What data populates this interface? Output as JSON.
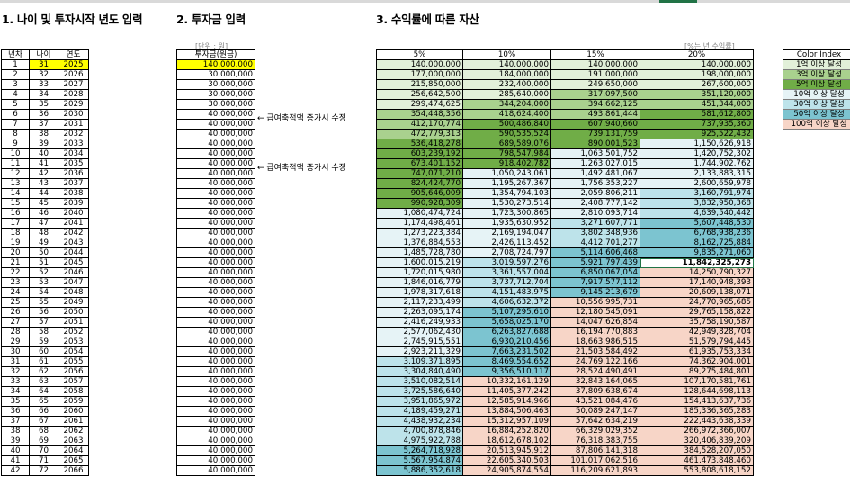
{
  "headings": {
    "h1": "1. 나이 및 투자시작 년도 입력",
    "h2": "2. 투자금 입력",
    "h3": "3. 수익률에 따른 자산"
  },
  "notes": {
    "unit": "[단위 : 원]",
    "rate": "[%는 년 수익률]"
  },
  "headers": {
    "year_no": "년차",
    "age": "나이",
    "year": "연도",
    "investment": "투자금(원금)",
    "rates": [
      "5%",
      "10%",
      "15%",
      "20%"
    ],
    "color_index": "Color Index"
  },
  "annotations": [
    "← 급여축적액 증가시 수정",
    "← 급여축적액 증가시 수정"
  ],
  "color_index": [
    {
      "label": "1억 이상 달성",
      "color": "#e2f0d9"
    },
    {
      "label": "3억 이상 달성",
      "color": "#a9d18e"
    },
    {
      "label": "5억 이상 달성",
      "color": "#70ad47"
    },
    {
      "label": "10억 이상 달성",
      "color": "#e6f3f6"
    },
    {
      "label": "30억 이상 달성",
      "color": "#bde3ea"
    },
    {
      "label": "50억 이상 달성",
      "color": "#7cc4d0"
    },
    {
      "label": "100억 이상 달성",
      "color": "#f7d5c7"
    }
  ],
  "rows": [
    [
      "1",
      "31",
      "2025",
      "140,000,000",
      "140,000,000",
      "140,000,000",
      "140,000,000",
      "140,000,000"
    ],
    [
      "2",
      "32",
      "2026",
      "30,000,000",
      "177,000,000",
      "184,000,000",
      "191,000,000",
      "198,000,000"
    ],
    [
      "3",
      "33",
      "2027",
      "30,000,000",
      "215,850,000",
      "232,400,000",
      "249,650,000",
      "267,600,000"
    ],
    [
      "4",
      "34",
      "2028",
      "30,000,000",
      "256,642,500",
      "285,640,000",
      "317,097,500",
      "351,120,000"
    ],
    [
      "5",
      "35",
      "2029",
      "30,000,000",
      "299,474,625",
      "344,204,000",
      "394,662,125",
      "451,344,000"
    ],
    [
      "6",
      "36",
      "2030",
      "40,000,000",
      "354,448,356",
      "418,624,400",
      "493,861,444",
      "581,612,800"
    ],
    [
      "7",
      "37",
      "2031",
      "40,000,000",
      "412,170,774",
      "500,486,840",
      "607,940,660",
      "737,935,360"
    ],
    [
      "8",
      "38",
      "2032",
      "40,000,000",
      "472,779,313",
      "590,535,524",
      "739,131,759",
      "925,522,432"
    ],
    [
      "9",
      "39",
      "2033",
      "40,000,000",
      "536,418,278",
      "689,589,076",
      "890,001,523",
      "1,150,626,918"
    ],
    [
      "10",
      "40",
      "2034",
      "40,000,000",
      "603,239,192",
      "798,547,984",
      "1,063,501,752",
      "1,420,752,302"
    ],
    [
      "11",
      "41",
      "2035",
      "40,000,000",
      "673,401,152",
      "918,402,782",
      "1,263,027,015",
      "1,744,902,762"
    ],
    [
      "12",
      "42",
      "2036",
      "40,000,000",
      "747,071,210",
      "1,050,243,061",
      "1,492,481,067",
      "2,133,883,315"
    ],
    [
      "13",
      "43",
      "2037",
      "40,000,000",
      "824,424,770",
      "1,195,267,367",
      "1,756,353,227",
      "2,600,659,978"
    ],
    [
      "14",
      "44",
      "2038",
      "40,000,000",
      "905,646,009",
      "1,354,794,103",
      "2,059,806,211",
      "3,160,791,974"
    ],
    [
      "15",
      "45",
      "2039",
      "40,000,000",
      "990,928,309",
      "1,530,273,514",
      "2,408,777,142",
      "3,832,950,368"
    ],
    [
      "16",
      "46",
      "2040",
      "40,000,000",
      "1,080,474,724",
      "1,723,300,865",
      "2,810,093,714",
      "4,639,540,442"
    ],
    [
      "17",
      "47",
      "2041",
      "40,000,000",
      "1,174,498,461",
      "1,935,630,952",
      "3,271,607,771",
      "5,607,448,530"
    ],
    [
      "18",
      "48",
      "2042",
      "40,000,000",
      "1,273,223,384",
      "2,169,194,047",
      "3,802,348,936",
      "6,768,938,236"
    ],
    [
      "19",
      "49",
      "2043",
      "40,000,000",
      "1,376,884,553",
      "2,426,113,452",
      "4,412,701,277",
      "8,162,725,884"
    ],
    [
      "20",
      "50",
      "2044",
      "40,000,000",
      "1,485,728,780",
      "2,708,724,797",
      "5,114,606,468",
      "9,835,271,060"
    ],
    [
      "21",
      "51",
      "2045",
      "40,000,000",
      "1,600,015,219",
      "3,019,597,276",
      "5,921,797,439",
      "11,842,325,273"
    ],
    [
      "22",
      "52",
      "2046",
      "40,000,000",
      "1,720,015,980",
      "3,361,557,004",
      "6,850,067,054",
      "14,250,790,327"
    ],
    [
      "23",
      "53",
      "2047",
      "40,000,000",
      "1,846,016,779",
      "3,737,712,704",
      "7,917,577,112",
      "17,140,948,393"
    ],
    [
      "24",
      "54",
      "2048",
      "40,000,000",
      "1,978,317,618",
      "4,151,483,975",
      "9,145,213,679",
      "20,609,138,071"
    ],
    [
      "25",
      "55",
      "2049",
      "40,000,000",
      "2,117,233,499",
      "4,606,632,372",
      "10,556,995,731",
      "24,770,965,685"
    ],
    [
      "26",
      "56",
      "2050",
      "40,000,000",
      "2,263,095,174",
      "5,107,295,610",
      "12,180,545,091",
      "29,765,158,822"
    ],
    [
      "27",
      "57",
      "2051",
      "40,000,000",
      "2,416,249,933",
      "5,658,025,170",
      "14,047,626,854",
      "35,758,190,587"
    ],
    [
      "28",
      "58",
      "2052",
      "40,000,000",
      "2,577,062,430",
      "6,263,827,688",
      "16,194,770,883",
      "42,949,828,704"
    ],
    [
      "29",
      "59",
      "2053",
      "40,000,000",
      "2,745,915,551",
      "6,930,210,456",
      "18,663,986,515",
      "51,579,794,445"
    ],
    [
      "30",
      "60",
      "2054",
      "40,000,000",
      "2,923,211,329",
      "7,663,231,502",
      "21,503,584,492",
      "61,935,753,334"
    ],
    [
      "31",
      "61",
      "2055",
      "40,000,000",
      "3,109,371,895",
      "8,469,554,652",
      "24,769,122,166",
      "74,362,904,001"
    ],
    [
      "32",
      "62",
      "2056",
      "40,000,000",
      "3,304,840,490",
      "9,356,510,117",
      "28,524,490,491",
      "89,275,484,801"
    ],
    [
      "33",
      "63",
      "2057",
      "40,000,000",
      "3,510,082,514",
      "10,332,161,129",
      "32,843,164,065",
      "107,170,581,761"
    ],
    [
      "34",
      "64",
      "2058",
      "40,000,000",
      "3,725,586,640",
      "11,405,377,242",
      "37,809,638,674",
      "128,644,698,113"
    ],
    [
      "35",
      "65",
      "2059",
      "40,000,000",
      "3,951,865,972",
      "12,585,914,966",
      "43,521,084,476",
      "154,413,637,736"
    ],
    [
      "36",
      "66",
      "2060",
      "40,000,000",
      "4,189,459,271",
      "13,884,506,463",
      "50,089,247,147",
      "185,336,365,283"
    ],
    [
      "37",
      "67",
      "2061",
      "40,000,000",
      "4,438,932,234",
      "15,312,957,109",
      "57,642,634,219",
      "222,443,638,339"
    ],
    [
      "38",
      "68",
      "2062",
      "40,000,000",
      "4,700,878,846",
      "16,884,252,820",
      "66,329,029,352",
      "266,972,366,007"
    ],
    [
      "39",
      "69",
      "2063",
      "40,000,000",
      "4,975,922,788",
      "18,612,678,102",
      "76,318,383,755",
      "320,406,839,209"
    ],
    [
      "40",
      "70",
      "2064",
      "40,000,000",
      "5,264,718,928",
      "20,513,945,912",
      "87,806,141,318",
      "384,528,207,050"
    ],
    [
      "41",
      "71",
      "2065",
      "40,000,000",
      "5,567,954,874",
      "22,605,340,503",
      "101,017,062,516",
      "461,473,848,460"
    ],
    [
      "42",
      "72",
      "2066",
      "40,000,000",
      "5,886,352,618",
      "24,905,874,554",
      "116,209,621,893",
      "553,808,618,152"
    ]
  ]
}
